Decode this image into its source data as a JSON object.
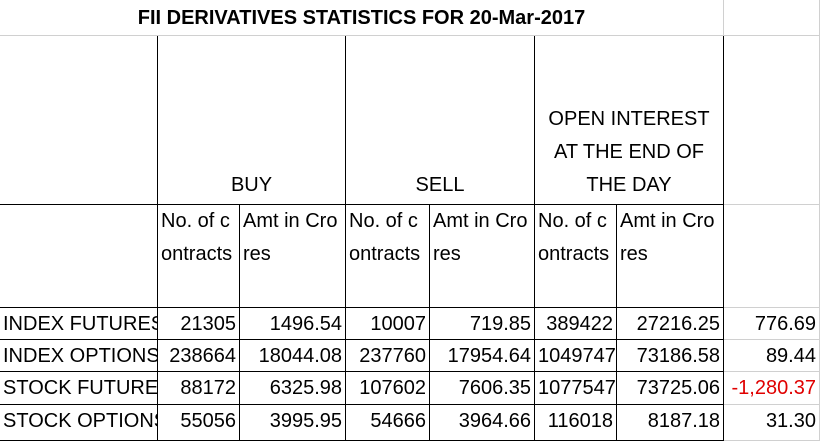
{
  "title": "FII DERIVATIVES STATISTICS FOR 20-Mar-2017",
  "table": {
    "groups": [
      "BUY",
      "SELL",
      "OPEN INTEREST AT THE END OF THE DAY"
    ],
    "subheaders": [
      "No. of contracts",
      "Amt in Crores",
      "No. of contracts",
      "Amt in Crores",
      "No. of contracts",
      "Amt in Crores"
    ],
    "rows": [
      [
        "INDEX FUTURES",
        "21305",
        "1496.54",
        "10007",
        "719.85",
        "389422",
        "27216.25",
        "776.69"
      ],
      [
        "INDEX OPTIONS",
        "238664",
        "18044.08",
        "237760",
        "17954.64",
        "1049747",
        "73186.58",
        "89.44"
      ],
      [
        "STOCK FUTURES",
        "88172",
        "6325.98",
        "107602",
        "7606.35",
        "1077547",
        "73725.06",
        "-1,280.37"
      ],
      [
        "STOCK OPTIONS",
        "55056",
        "3995.95",
        "54666",
        "3964.66",
        "116018",
        "8187.18",
        "31.30"
      ]
    ]
  }
}
